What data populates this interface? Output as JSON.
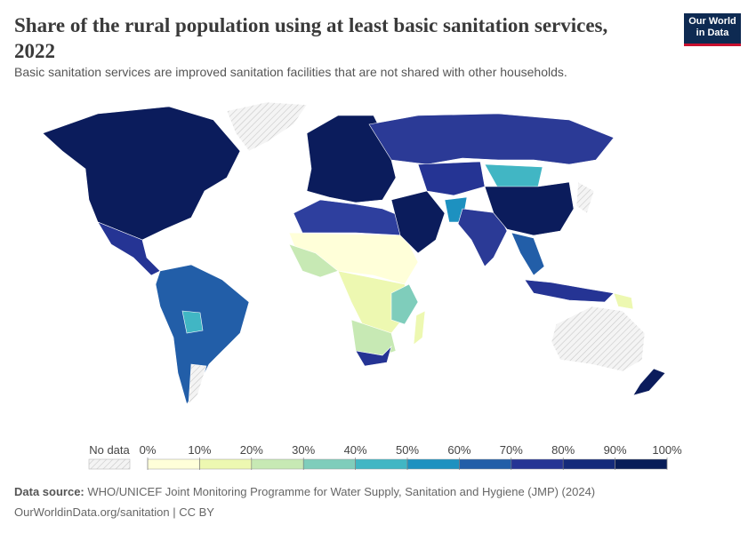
{
  "header": {
    "title": "Share of the rural population using at least basic sanitation services, 2022",
    "subtitle": "Basic sanitation services are improved sanitation facilities that are not shared with other households.",
    "logo": "Our World in Data"
  },
  "legend": {
    "no_data": "No data",
    "colors": [
      "#ffffd9",
      "#edf8b1",
      "#c7e9b4",
      "#7fcdbb",
      "#41b6c4",
      "#1d91c0",
      "#225ea8",
      "#253494",
      "#142a7a",
      "#081d58"
    ],
    "ticks": [
      {
        "value": 0,
        "label": "0%"
      },
      {
        "value": 10,
        "label": "10%"
      },
      {
        "value": 20,
        "label": "20%"
      },
      {
        "value": 30,
        "label": "30%"
      },
      {
        "value": 40,
        "label": "40%"
      },
      {
        "value": 50,
        "label": "50%"
      },
      {
        "value": 60,
        "label": "60%"
      },
      {
        "value": 70,
        "label": "70%"
      },
      {
        "value": 80,
        "label": "80%"
      },
      {
        "value": 90,
        "label": "90%"
      },
      {
        "value": 100,
        "label": "100%"
      }
    ]
  },
  "footer": {
    "source_label": "Data source:",
    "source": "WHO/UNICEF Joint Monitoring Programme for Water Supply, Sanitation and Hygiene (JMP) (2024)",
    "url": "OurWorldinData.org/sanitation | CC BY"
  }
}
